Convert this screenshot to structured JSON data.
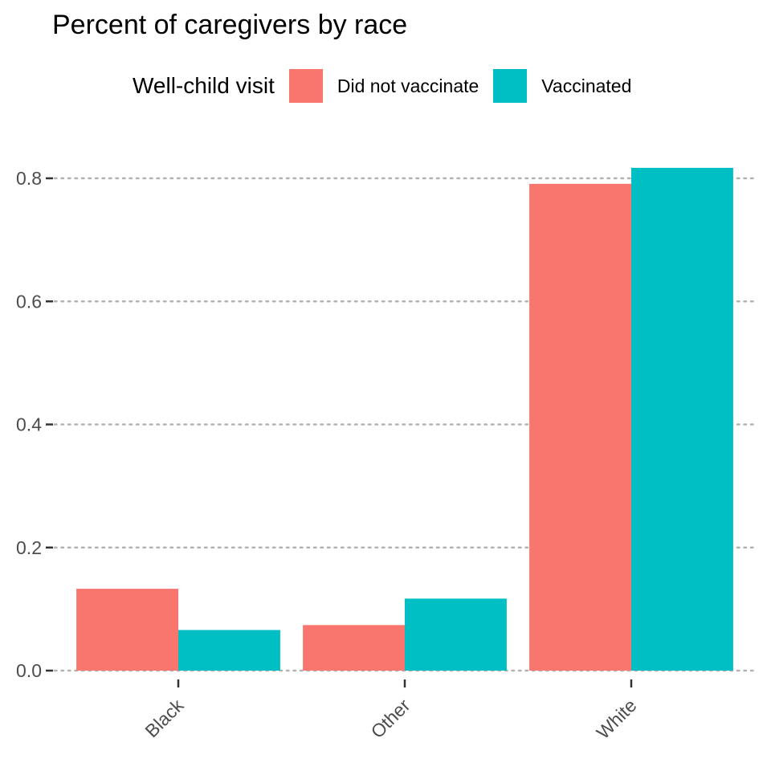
{
  "chart_data": {
    "type": "bar",
    "title": "Percent of caregivers by race",
    "categories": [
      "Black",
      "Other",
      "White"
    ],
    "series": [
      {
        "name": "Did not vaccinate",
        "values": [
          0.133,
          0.074,
          0.791
        ],
        "color": "#F8766D"
      },
      {
        "name": "Vaccinated",
        "values": [
          0.066,
          0.117,
          0.817
        ],
        "color": "#00BFC4"
      }
    ],
    "legend": {
      "title": "Well-child visit",
      "position": "top"
    },
    "ylim": [
      0,
      0.8
    ],
    "yticks": [
      "0.0",
      "0.2",
      "0.4",
      "0.6",
      "0.8"
    ],
    "grid": "horizontal-dotted"
  }
}
